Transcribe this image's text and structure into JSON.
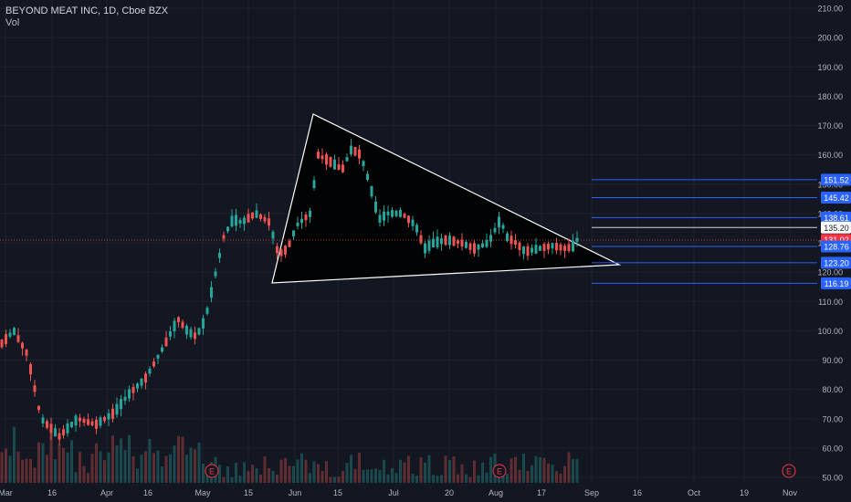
{
  "header": {
    "symbol_line": "BEYOND MEAT INC, 1D, Cboe BZX",
    "volume_label": "Vol"
  },
  "price_axis": {
    "ticks": [
      "210.00",
      "200.00",
      "190.00",
      "180.00",
      "170.00",
      "160.00",
      "150.00",
      "140.00",
      "130.00",
      "120.00",
      "110.00",
      "100.00",
      "90.00",
      "80.00",
      "70.00",
      "60.00",
      "50.00"
    ]
  },
  "time_axis": {
    "labels": [
      "Mar",
      "16",
      "Apr",
      "16",
      "May",
      "15",
      "Jun",
      "15",
      "Jul",
      "20",
      "Aug",
      "17",
      "Sep",
      "16",
      "Oct",
      "19",
      "Nov"
    ]
  },
  "level_badges": [
    {
      "label": "151.52",
      "kind": "blue"
    },
    {
      "label": "145.42",
      "kind": "blue"
    },
    {
      "label": "138.61",
      "kind": "blue"
    },
    {
      "label": "135.20",
      "kind": "white"
    },
    {
      "label": "131.02",
      "kind": "red"
    },
    {
      "label": "128.76",
      "kind": "blue"
    },
    {
      "label": "123.20",
      "kind": "blue"
    },
    {
      "label": "116.19",
      "kind": "blue"
    }
  ],
  "earnings_markers": [
    "E",
    "E",
    "E"
  ],
  "colors": {
    "background": "#131722",
    "up": "#26a69a",
    "down": "#ef5350",
    "level_line": "#2962ff",
    "badge_blue": "#2962ff",
    "badge_red": "#f23645",
    "text": "#b2b5be",
    "drawing": "#ffffff"
  }
}
